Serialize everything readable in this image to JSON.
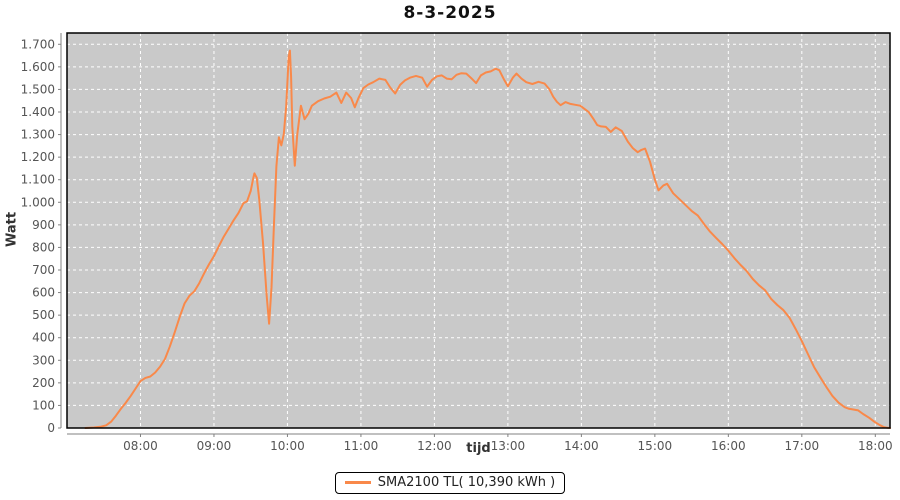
{
  "title": "8-3-2025",
  "legend": {
    "label": "SMA2100 TL( 10,390 kWh )"
  },
  "colors": {
    "series": "#f9894a",
    "plot_background": "#c9c9c9",
    "grid": "#ffffff",
    "plot_border": "#000000",
    "axis_line": "#808080",
    "tick_label": "#555555"
  },
  "chart_data": {
    "type": "line",
    "title": "8-3-2025",
    "xlabel": "tijd",
    "ylabel": "Watt",
    "x_unit": "minutes_since_midnight",
    "xlim": [
      420,
      1092
    ],
    "ylim": [
      0,
      1750
    ],
    "grid": "white dashed, hourly vertical + 100 W horizontal",
    "legend_position": "bottom-center",
    "x_ticks": [
      {
        "m": 480,
        "label": "08:00"
      },
      {
        "m": 540,
        "label": "09:00"
      },
      {
        "m": 600,
        "label": "10:00"
      },
      {
        "m": 660,
        "label": "11:00"
      },
      {
        "m": 720,
        "label": "12:00"
      },
      {
        "m": 780,
        "label": "13:00"
      },
      {
        "m": 840,
        "label": "14:00"
      },
      {
        "m": 900,
        "label": "15:00"
      },
      {
        "m": 960,
        "label": "16:00"
      },
      {
        "m": 1020,
        "label": "17:00"
      },
      {
        "m": 1080,
        "label": "18:00"
      }
    ],
    "y_ticks": [
      {
        "v": 0,
        "label": "0"
      },
      {
        "v": 100,
        "label": "100"
      },
      {
        "v": 200,
        "label": "200"
      },
      {
        "v": 300,
        "label": "300"
      },
      {
        "v": 400,
        "label": "400"
      },
      {
        "v": 500,
        "label": "500"
      },
      {
        "v": 600,
        "label": "600"
      },
      {
        "v": 700,
        "label": "700"
      },
      {
        "v": 800,
        "label": "800"
      },
      {
        "v": 900,
        "label": "900"
      },
      {
        "v": 1000,
        "label": "1.000"
      },
      {
        "v": 1100,
        "label": "1.100"
      },
      {
        "v": 1200,
        "label": "1.200"
      },
      {
        "v": 1300,
        "label": "1.300"
      },
      {
        "v": 1400,
        "label": "1.400"
      },
      {
        "v": 1500,
        "label": "1.500"
      },
      {
        "v": 1600,
        "label": "1.600"
      },
      {
        "v": 1700,
        "label": "1.700"
      }
    ],
    "series": [
      {
        "name": "SMA2100 TL( 10,390 kWh )",
        "color": "#f9894a",
        "points": [
          [
            435,
            0
          ],
          [
            442,
            2
          ],
          [
            448,
            6
          ],
          [
            452,
            12
          ],
          [
            456,
            28
          ],
          [
            460,
            55
          ],
          [
            464,
            85
          ],
          [
            468,
            112
          ],
          [
            472,
            142
          ],
          [
            476,
            175
          ],
          [
            480,
            208
          ],
          [
            484,
            222
          ],
          [
            488,
            228
          ],
          [
            492,
            246
          ],
          [
            496,
            272
          ],
          [
            500,
            306
          ],
          [
            504,
            362
          ],
          [
            508,
            425
          ],
          [
            512,
            492
          ],
          [
            516,
            552
          ],
          [
            520,
            586
          ],
          [
            524,
            606
          ],
          [
            528,
            642
          ],
          [
            532,
            686
          ],
          [
            536,
            726
          ],
          [
            540,
            762
          ],
          [
            544,
            806
          ],
          [
            548,
            848
          ],
          [
            552,
            884
          ],
          [
            556,
            920
          ],
          [
            560,
            953
          ],
          [
            564,
            996
          ],
          [
            567,
            1004
          ],
          [
            570,
            1050
          ],
          [
            572,
            1106
          ],
          [
            573,
            1128
          ],
          [
            575,
            1108
          ],
          [
            577,
            1010
          ],
          [
            580,
            820
          ],
          [
            583,
            590
          ],
          [
            585,
            462
          ],
          [
            587,
            622
          ],
          [
            589,
            906
          ],
          [
            591,
            1160
          ],
          [
            593,
            1288
          ],
          [
            595,
            1252
          ],
          [
            597,
            1302
          ],
          [
            599,
            1426
          ],
          [
            601,
            1646
          ],
          [
            602,
            1672
          ],
          [
            603,
            1556
          ],
          [
            604,
            1336
          ],
          [
            606,
            1162
          ],
          [
            608,
            1298
          ],
          [
            611,
            1428
          ],
          [
            614,
            1368
          ],
          [
            617,
            1392
          ],
          [
            620,
            1428
          ],
          [
            625,
            1448
          ],
          [
            630,
            1460
          ],
          [
            635,
            1468
          ],
          [
            640,
            1486
          ],
          [
            644,
            1440
          ],
          [
            648,
            1486
          ],
          [
            652,
            1462
          ],
          [
            655,
            1421
          ],
          [
            658,
            1462
          ],
          [
            662,
            1506
          ],
          [
            666,
            1522
          ],
          [
            670,
            1532
          ],
          [
            675,
            1548
          ],
          [
            680,
            1542
          ],
          [
            684,
            1508
          ],
          [
            688,
            1482
          ],
          [
            692,
            1520
          ],
          [
            696,
            1540
          ],
          [
            700,
            1552
          ],
          [
            705,
            1560
          ],
          [
            710,
            1552
          ],
          [
            714,
            1512
          ],
          [
            718,
            1542
          ],
          [
            722,
            1558
          ],
          [
            726,
            1562
          ],
          [
            730,
            1548
          ],
          [
            734,
            1545
          ],
          [
            738,
            1565
          ],
          [
            742,
            1572
          ],
          [
            746,
            1570
          ],
          [
            750,
            1550
          ],
          [
            754,
            1528
          ],
          [
            758,
            1562
          ],
          [
            762,
            1575
          ],
          [
            766,
            1580
          ],
          [
            770,
            1592
          ],
          [
            773,
            1585
          ],
          [
            777,
            1542
          ],
          [
            780,
            1514
          ],
          [
            784,
            1552
          ],
          [
            787,
            1570
          ],
          [
            791,
            1548
          ],
          [
            795,
            1532
          ],
          [
            800,
            1524
          ],
          [
            805,
            1534
          ],
          [
            810,
            1526
          ],
          [
            814,
            1500
          ],
          [
            817,
            1468
          ],
          [
            820,
            1445
          ],
          [
            823,
            1430
          ],
          [
            827,
            1444
          ],
          [
            831,
            1436
          ],
          [
            835,
            1432
          ],
          [
            839,
            1428
          ],
          [
            843,
            1412
          ],
          [
            846,
            1400
          ],
          [
            850,
            1368
          ],
          [
            853,
            1342
          ],
          [
            856,
            1336
          ],
          [
            860,
            1334
          ],
          [
            864,
            1312
          ],
          [
            868,
            1332
          ],
          [
            873,
            1316
          ],
          [
            878,
            1268
          ],
          [
            882,
            1240
          ],
          [
            886,
            1222
          ],
          [
            889,
            1232
          ],
          [
            892,
            1238
          ],
          [
            896,
            1180
          ],
          [
            900,
            1100
          ],
          [
            903,
            1053
          ],
          [
            907,
            1075
          ],
          [
            910,
            1082
          ],
          [
            915,
            1040
          ],
          [
            921,
            1009
          ],
          [
            927,
            978
          ],
          [
            930,
            962
          ],
          [
            935,
            942
          ],
          [
            940,
            905
          ],
          [
            945,
            870
          ],
          [
            950,
            842
          ],
          [
            955,
            815
          ],
          [
            960,
            786
          ],
          [
            965,
            752
          ],
          [
            970,
            722
          ],
          [
            975,
            695
          ],
          [
            980,
            660
          ],
          [
            985,
            632
          ],
          [
            990,
            610
          ],
          [
            995,
            572
          ],
          [
            1000,
            545
          ],
          [
            1005,
            522
          ],
          [
            1010,
            488
          ],
          [
            1015,
            438
          ],
          [
            1020,
            385
          ],
          [
            1025,
            328
          ],
          [
            1030,
            270
          ],
          [
            1035,
            225
          ],
          [
            1040,
            182
          ],
          [
            1045,
            142
          ],
          [
            1050,
            112
          ],
          [
            1055,
            92
          ],
          [
            1058,
            86
          ],
          [
            1062,
            82
          ],
          [
            1066,
            78
          ],
          [
            1070,
            62
          ],
          [
            1075,
            45
          ],
          [
            1080,
            25
          ],
          [
            1084,
            12
          ],
          [
            1087,
            4
          ],
          [
            1090,
            1
          ],
          [
            1092,
            0
          ]
        ]
      }
    ]
  }
}
